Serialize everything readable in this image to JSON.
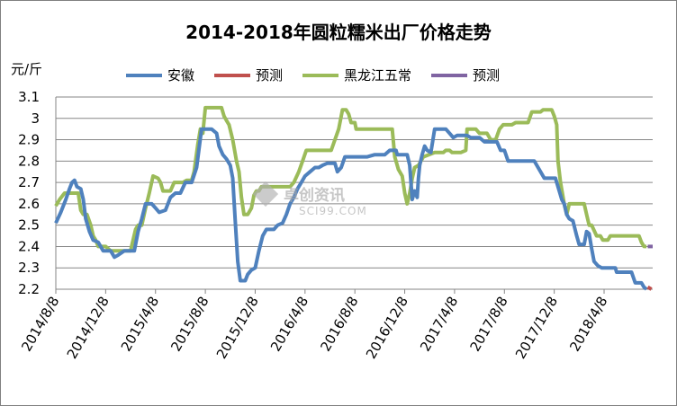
{
  "chart_data": {
    "type": "line",
    "title": "2014-2018年圆粒糯米出厂价格走势",
    "unit_label": "元/斤",
    "ylim": [
      2.2,
      3.1
    ],
    "y_ticks": [
      "2.2",
      "2.3",
      "2.4",
      "2.5",
      "2.6",
      "2.7",
      "2.8",
      "2.9",
      "3",
      "3.1"
    ],
    "x_ticks": [
      "2014/8/8",
      "2014/12/8",
      "2015/4/8",
      "2015/8/8",
      "2015/12/8",
      "2016/4/8",
      "2016/8/8",
      "2016/12/8",
      "2017/4/8",
      "2017/8/8",
      "2017/12/8",
      "2018/4/8"
    ],
    "x_tick_months": [
      0,
      4,
      8,
      12,
      16,
      20,
      24,
      28,
      32,
      36,
      40,
      44
    ],
    "grid": "horizontal",
    "legend_position": "top",
    "series": [
      {
        "name": "安徽",
        "color": "#4f81bd",
        "points": [
          [
            0,
            2.51
          ],
          [
            0.4,
            2.56
          ],
          [
            0.8,
            2.62
          ],
          [
            1.1,
            2.67
          ],
          [
            1.3,
            2.7
          ],
          [
            1.5,
            2.71
          ],
          [
            1.7,
            2.68
          ],
          [
            2.0,
            2.67
          ],
          [
            2.2,
            2.62
          ],
          [
            2.4,
            2.53
          ],
          [
            2.7,
            2.47
          ],
          [
            3.0,
            2.43
          ],
          [
            3.4,
            2.42
          ],
          [
            3.8,
            2.38
          ],
          [
            4.4,
            2.38
          ],
          [
            4.7,
            2.35
          ],
          [
            5.0,
            2.36
          ],
          [
            5.5,
            2.38
          ],
          [
            6.3,
            2.38
          ],
          [
            6.6,
            2.47
          ],
          [
            6.9,
            2.53
          ],
          [
            7.2,
            2.6
          ],
          [
            7.7,
            2.6
          ],
          [
            8.0,
            2.58
          ],
          [
            8.3,
            2.56
          ],
          [
            8.8,
            2.57
          ],
          [
            9.2,
            2.63
          ],
          [
            9.6,
            2.65
          ],
          [
            10.0,
            2.65
          ],
          [
            10.4,
            2.7
          ],
          [
            10.9,
            2.7
          ],
          [
            11.3,
            2.77
          ],
          [
            11.7,
            2.95
          ],
          [
            12.5,
            2.95
          ],
          [
            12.9,
            2.93
          ],
          [
            13.1,
            2.87
          ],
          [
            13.4,
            2.83
          ],
          [
            13.7,
            2.81
          ],
          [
            14.0,
            2.78
          ],
          [
            14.2,
            2.72
          ],
          [
            14.4,
            2.52
          ],
          [
            14.6,
            2.33
          ],
          [
            14.8,
            2.24
          ],
          [
            15.2,
            2.24
          ],
          [
            15.4,
            2.27
          ],
          [
            15.7,
            2.29
          ],
          [
            16.0,
            2.3
          ],
          [
            16.3,
            2.38
          ],
          [
            16.6,
            2.45
          ],
          [
            16.9,
            2.48
          ],
          [
            17.5,
            2.48
          ],
          [
            17.8,
            2.5
          ],
          [
            18.2,
            2.51
          ],
          [
            18.5,
            2.55
          ],
          [
            18.8,
            2.6
          ],
          [
            19.1,
            2.63
          ],
          [
            19.4,
            2.67
          ],
          [
            19.7,
            2.7
          ],
          [
            20.0,
            2.73
          ],
          [
            20.4,
            2.75
          ],
          [
            20.8,
            2.77
          ],
          [
            21.1,
            2.77
          ],
          [
            21.4,
            2.78
          ],
          [
            21.8,
            2.79
          ],
          [
            22.4,
            2.79
          ],
          [
            22.6,
            2.75
          ],
          [
            22.9,
            2.77
          ],
          [
            23.2,
            2.82
          ],
          [
            24.6,
            2.82
          ],
          [
            25.0,
            2.82
          ],
          [
            25.6,
            2.83
          ],
          [
            26.4,
            2.83
          ],
          [
            26.8,
            2.85
          ],
          [
            27.3,
            2.85
          ],
          [
            27.4,
            2.83
          ],
          [
            28.2,
            2.83
          ],
          [
            28.4,
            2.78
          ],
          [
            28.5,
            2.7
          ],
          [
            28.6,
            2.62
          ],
          [
            28.8,
            2.66
          ],
          [
            29.0,
            2.63
          ],
          [
            29.1,
            2.72
          ],
          [
            29.2,
            2.78
          ],
          [
            29.4,
            2.83
          ],
          [
            29.6,
            2.87
          ],
          [
            29.8,
            2.85
          ],
          [
            30.1,
            2.84
          ],
          [
            30.4,
            2.95
          ],
          [
            31.3,
            2.95
          ],
          [
            31.6,
            2.93
          ],
          [
            31.9,
            2.91
          ],
          [
            32.2,
            2.92
          ],
          [
            33.0,
            2.92
          ],
          [
            33.3,
            2.91
          ],
          [
            34.0,
            2.91
          ],
          [
            34.4,
            2.89
          ],
          [
            35.4,
            2.89
          ],
          [
            35.7,
            2.85
          ],
          [
            36.0,
            2.85
          ],
          [
            36.3,
            2.8
          ],
          [
            38.4,
            2.8
          ],
          [
            38.7,
            2.77
          ],
          [
            39.2,
            2.72
          ],
          [
            40.1,
            2.72
          ],
          [
            40.4,
            2.66
          ],
          [
            40.6,
            2.62
          ],
          [
            40.8,
            2.6
          ],
          [
            41.0,
            2.55
          ],
          [
            41.2,
            2.53
          ],
          [
            41.5,
            2.52
          ],
          [
            41.8,
            2.45
          ],
          [
            42.0,
            2.41
          ],
          [
            42.4,
            2.41
          ],
          [
            42.6,
            2.47
          ],
          [
            42.8,
            2.46
          ],
          [
            43.0,
            2.39
          ],
          [
            43.2,
            2.33
          ],
          [
            43.5,
            2.31
          ],
          [
            43.8,
            2.3
          ],
          [
            44.9,
            2.3
          ],
          [
            45.0,
            2.28
          ],
          [
            45.5,
            2.28
          ],
          [
            46.2,
            2.28
          ],
          [
            46.5,
            2.23
          ],
          [
            47.0,
            2.23
          ],
          [
            47.2,
            2.21
          ],
          [
            47.4,
            2.2
          ]
        ]
      },
      {
        "name": "预测",
        "color": "#c0504d",
        "points": [
          [
            47.5,
            2.21
          ],
          [
            47.8,
            2.2
          ]
        ]
      },
      {
        "name": "黑龙江五常",
        "color": "#9bbb59",
        "points": [
          [
            0,
            2.59
          ],
          [
            0.3,
            2.62
          ],
          [
            0.7,
            2.65
          ],
          [
            1.8,
            2.65
          ],
          [
            2.0,
            2.57
          ],
          [
            2.2,
            2.55
          ],
          [
            2.5,
            2.55
          ],
          [
            2.8,
            2.5
          ],
          [
            3.0,
            2.45
          ],
          [
            3.2,
            2.43
          ],
          [
            3.4,
            2.4
          ],
          [
            4.0,
            2.4
          ],
          [
            4.4,
            2.38
          ],
          [
            6.0,
            2.38
          ],
          [
            6.2,
            2.43
          ],
          [
            6.4,
            2.48
          ],
          [
            6.6,
            2.5
          ],
          [
            6.9,
            2.5
          ],
          [
            7.2,
            2.58
          ],
          [
            7.5,
            2.65
          ],
          [
            7.8,
            2.73
          ],
          [
            8.2,
            2.72
          ],
          [
            8.4,
            2.7
          ],
          [
            8.6,
            2.66
          ],
          [
            8.9,
            2.66
          ],
          [
            9.2,
            2.66
          ],
          [
            9.5,
            2.7
          ],
          [
            10.2,
            2.7
          ],
          [
            10.5,
            2.71
          ],
          [
            10.9,
            2.71
          ],
          [
            11.1,
            2.75
          ],
          [
            11.4,
            2.88
          ],
          [
            11.6,
            2.95
          ],
          [
            11.8,
            2.93
          ],
          [
            12.0,
            3.05
          ],
          [
            13.3,
            3.05
          ],
          [
            13.5,
            3.01
          ],
          [
            13.7,
            2.99
          ],
          [
            13.9,
            2.97
          ],
          [
            14.2,
            2.9
          ],
          [
            14.5,
            2.8
          ],
          [
            14.7,
            2.75
          ],
          [
            14.9,
            2.63
          ],
          [
            15.1,
            2.55
          ],
          [
            15.4,
            2.55
          ],
          [
            15.7,
            2.58
          ],
          [
            15.9,
            2.64
          ],
          [
            16.1,
            2.66
          ],
          [
            16.3,
            2.66
          ],
          [
            16.5,
            2.68
          ],
          [
            18.5,
            2.68
          ],
          [
            18.8,
            2.68
          ],
          [
            19.1,
            2.7
          ],
          [
            19.5,
            2.75
          ],
          [
            19.8,
            2.8
          ],
          [
            20.1,
            2.85
          ],
          [
            22.1,
            2.85
          ],
          [
            22.4,
            2.9
          ],
          [
            22.7,
            2.95
          ],
          [
            23.0,
            3.04
          ],
          [
            23.3,
            3.04
          ],
          [
            23.5,
            3.02
          ],
          [
            23.7,
            2.98
          ],
          [
            24.0,
            2.98
          ],
          [
            24.1,
            2.95
          ],
          [
            27.0,
            2.95
          ],
          [
            27.2,
            2.82
          ],
          [
            27.5,
            2.76
          ],
          [
            27.8,
            2.73
          ],
          [
            28.0,
            2.65
          ],
          [
            28.2,
            2.6
          ],
          [
            28.4,
            2.65
          ],
          [
            28.6,
            2.72
          ],
          [
            28.8,
            2.77
          ],
          [
            29.1,
            2.78
          ],
          [
            29.3,
            2.8
          ],
          [
            29.5,
            2.82
          ],
          [
            30.4,
            2.84
          ],
          [
            31.1,
            2.84
          ],
          [
            31.3,
            2.85
          ],
          [
            31.6,
            2.85
          ],
          [
            31.8,
            2.84
          ],
          [
            32.5,
            2.84
          ],
          [
            32.9,
            2.85
          ],
          [
            33.0,
            2.95
          ],
          [
            33.7,
            2.95
          ],
          [
            34.0,
            2.93
          ],
          [
            34.6,
            2.93
          ],
          [
            34.9,
            2.9
          ],
          [
            35.3,
            2.9
          ],
          [
            35.6,
            2.95
          ],
          [
            35.9,
            2.97
          ],
          [
            36.6,
            2.97
          ],
          [
            36.9,
            2.98
          ],
          [
            37.9,
            2.98
          ],
          [
            38.2,
            3.03
          ],
          [
            38.9,
            3.03
          ],
          [
            39.1,
            3.04
          ],
          [
            39.8,
            3.04
          ],
          [
            40.0,
            3.01
          ],
          [
            40.2,
            2.97
          ],
          [
            40.3,
            2.8
          ],
          [
            40.5,
            2.7
          ],
          [
            40.8,
            2.6
          ],
          [
            41.0,
            2.55
          ],
          [
            41.2,
            2.6
          ],
          [
            42.4,
            2.6
          ],
          [
            42.6,
            2.55
          ],
          [
            42.8,
            2.5
          ],
          [
            43.0,
            2.5
          ],
          [
            43.4,
            2.45
          ],
          [
            43.7,
            2.45
          ],
          [
            43.9,
            2.43
          ],
          [
            44.3,
            2.43
          ],
          [
            44.5,
            2.45
          ],
          [
            46.8,
            2.45
          ],
          [
            47.0,
            2.42
          ],
          [
            47.2,
            2.4
          ],
          [
            47.4,
            2.4
          ]
        ]
      },
      {
        "name": "预测",
        "color": "#8064a2",
        "points": [
          [
            47.5,
            2.4
          ],
          [
            47.9,
            2.4
          ]
        ]
      }
    ]
  },
  "watermark": {
    "cn": "卓创资讯",
    "en": "SCI99.COM"
  }
}
